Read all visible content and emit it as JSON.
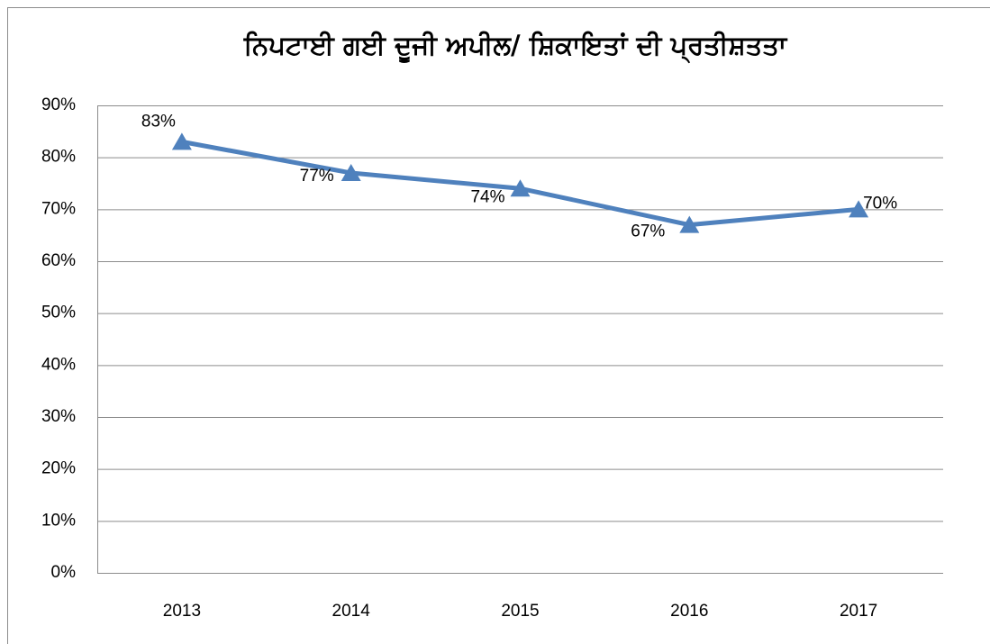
{
  "chart_data": {
    "type": "line",
    "title": "ਨਿਪਟਾਈ ਗਈ ਦੂਜੀ ਅਪੀਲ/ ਸ਼ਿਕਾਇਤਾਂ ਦੀ ਪ੍ਰਤੀਸ਼ਤਤਾ",
    "categories": [
      "2013",
      "2014",
      "2015",
      "2016",
      "2017"
    ],
    "series": [
      {
        "name": "ਪ੍ਰਤੀਸ਼ਤਤਾ",
        "color": "#4f81bd",
        "values": [
          83,
          77,
          74,
          67,
          70
        ],
        "value_labels": [
          "83%",
          "77%",
          "74%",
          "67%",
          "70%"
        ]
      }
    ],
    "ylim": [
      0,
      90
    ],
    "yticks": [
      {
        "value": 0,
        "label": "0%"
      },
      {
        "value": 10,
        "label": "10%"
      },
      {
        "value": 20,
        "label": "20%"
      },
      {
        "value": 30,
        "label": "30%"
      },
      {
        "value": 40,
        "label": "40%"
      },
      {
        "value": 50,
        "label": "50%"
      },
      {
        "value": 60,
        "label": "60%"
      },
      {
        "value": 70,
        "label": "70%"
      },
      {
        "value": 80,
        "label": "80%"
      },
      {
        "value": 90,
        "label": "90%"
      }
    ],
    "grid": true,
    "legend": false
  }
}
